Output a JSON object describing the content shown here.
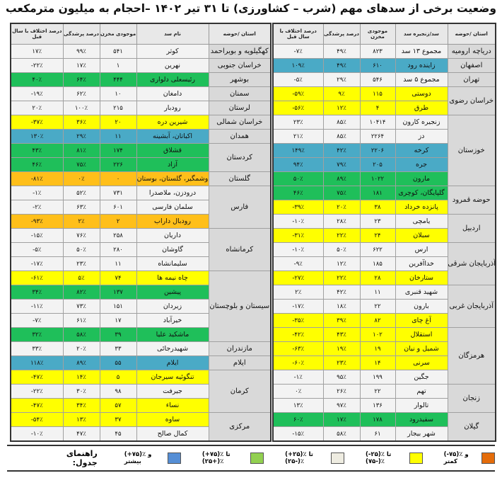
{
  "title": "وضعیت برخی از سدهای مهم (شرب – کشاورزی) تا ۳۱ تیر ۱۴۰۲ –احجام به میلیون مترمکعب",
  "colors": {
    "yellow": "#ffff00",
    "green": "#1fbf5a",
    "blue": "#4aaac6",
    "orange": "#ffbf1a",
    "none": "#f3f3f3"
  },
  "right_table": {
    "headers": {
      "province": "استان /حوضه",
      "dam": "سد/زنجیره سد",
      "storage": "موجودی مخزن",
      "fill": "درصد پرشدگی",
      "diff": "درصد اختلاف با سال قبل"
    },
    "groups": [
      {
        "province": "دریاچه ارومیه",
        "dams": [
          {
            "name": "مجموع ۱۳ سد",
            "storage": "۸۲۳",
            "fill": "۴۹٪",
            "diff": "-۷٪",
            "band": "none"
          }
        ]
      },
      {
        "province": "اصفهان",
        "dams": [
          {
            "name": "زاینده رود",
            "storage": "۶۱۰",
            "fill": "۴۹٪",
            "diff": "۱۰۹٪",
            "band": "blue"
          }
        ]
      },
      {
        "province": "تهران",
        "dams": [
          {
            "name": "مجموع ۵ سد",
            "storage": "۵۴۶",
            "fill": "۲۹٪",
            "diff": "-۵٪",
            "band": "none"
          }
        ]
      },
      {
        "province": "خراسان رضوی",
        "dams": [
          {
            "name": "دوستی",
            "storage": "۱۱۵",
            "fill": "۹٪",
            "diff": "-۵۹٪",
            "band": "yellow"
          },
          {
            "name": "طرق",
            "storage": "۴",
            "fill": "۱۲٪",
            "diff": "-۵۶٪",
            "band": "yellow"
          }
        ]
      },
      {
        "province": "خوزستان",
        "dams": [
          {
            "name": "زنجیره کارون",
            "storage": "۱۰۴۱۴",
            "fill": "۸۵٪",
            "diff": "۲۳٪",
            "band": "none"
          },
          {
            "name": "دز",
            "storage": "۲۲۶۴",
            "fill": "۸۵٪",
            "diff": "۲۱٪",
            "band": "none"
          },
          {
            "name": "کرخه",
            "storage": "۲۲۰۶",
            "fill": "۴۲٪",
            "diff": "۱۴۹٪",
            "band": "blue"
          },
          {
            "name": "جره",
            "storage": "۲۰۵",
            "fill": "۷۹٪",
            "diff": "۹۴٪",
            "band": "blue"
          },
          {
            "name": "مارون",
            "storage": "۱۰۲۲",
            "fill": "۸۹٪",
            "diff": "۵۰٪",
            "band": "green"
          }
        ]
      },
      {
        "province": "حوضه قمرود",
        "dams": [
          {
            "name": "گلپایگان، کوچری",
            "storage": "۱۸۱",
            "fill": "۷۵٪",
            "diff": "۴۶٪",
            "band": "green"
          },
          {
            "name": "پانزده خرداد",
            "storage": "۳۸",
            "fill": "۲۰٪",
            "diff": "-۳۹٪",
            "band": "yellow"
          }
        ]
      },
      {
        "province": "اردبیل",
        "dams": [
          {
            "name": "یامچی",
            "storage": "۲۳",
            "fill": "۲۸٪",
            "diff": "-۱۰٪",
            "band": "none"
          },
          {
            "name": "سبلان",
            "storage": "۲۴",
            "fill": "۲۲٪",
            "diff": "-۳۱٪",
            "band": "yellow"
          }
        ]
      },
      {
        "province": "آذربایجان شرقی",
        "dams": [
          {
            "name": "ارس",
            "storage": "۶۲۲",
            "fill": "۵۰٪",
            "diff": "-۱۰٪",
            "band": "none"
          },
          {
            "name": "خداآفرین",
            "storage": "۱۸۵",
            "fill": "۱۲٪",
            "diff": "-۹٪",
            "band": "none"
          },
          {
            "name": "ستارخان",
            "storage": "۲۸",
            "fill": "۲۲٪",
            "diff": "-۲۷٪",
            "band": "yellow"
          }
        ]
      },
      {
        "province": "آذربایجان غربی",
        "dams": [
          {
            "name": "شهید قنبری",
            "storage": "۱۱",
            "fill": "۴۲٪",
            "diff": "۲٪",
            "band": "none"
          },
          {
            "name": "بارون",
            "storage": "۲۲",
            "fill": "۱۸٪",
            "diff": "-۱۷٪",
            "band": "none"
          },
          {
            "name": "آغ چای",
            "storage": "۸۲",
            "fill": "۳۹٪",
            "diff": "-۳۵٪",
            "band": "yellow"
          }
        ]
      },
      {
        "province": "هرمزگان",
        "dams": [
          {
            "name": "استقلال",
            "storage": "۱۰۲",
            "fill": "۴۳٪",
            "diff": "-۴۲٪",
            "band": "yellow"
          },
          {
            "name": "شمیل و نیان",
            "storage": "۱۹",
            "fill": "۱۹٪",
            "diff": "-۶۳٪",
            "band": "yellow"
          },
          {
            "name": "سرنی",
            "storage": "۱۴",
            "fill": "۲۳٪",
            "diff": "-۶۰٪",
            "band": "yellow"
          },
          {
            "name": "جگین",
            "storage": "۱۹۹",
            "fill": "۹۵٪",
            "diff": "-۱٪",
            "band": "none"
          }
        ]
      },
      {
        "province": "زنجان",
        "dams": [
          {
            "name": "تهم",
            "storage": "۲۲",
            "fill": "۲۶٪",
            "diff": "۰٪",
            "band": "none"
          },
          {
            "name": "تالوار",
            "storage": "۱۳۶",
            "fill": "۹۷٪",
            "diff": "۱۳٪",
            "band": "none"
          }
        ]
      },
      {
        "province": "گیلان",
        "dams": [
          {
            "name": "سفیدرود",
            "storage": "۱۷۸",
            "fill": "۱۷٪",
            "diff": "۶۰٪",
            "band": "green"
          },
          {
            "name": "شهر بیجار",
            "storage": "۶۱",
            "fill": "۵۸٪",
            "diff": "-۱۵٪",
            "band": "none"
          }
        ]
      }
    ]
  },
  "left_table": {
    "headers": {
      "province": "استان /حوضه",
      "dam": "نام سد",
      "storage": "موجودی مخزن",
      "fill": "درصد پرشدگی",
      "diff": "درصد اختلاف با سال قبل"
    },
    "groups": [
      {
        "province": "کهگیلویه و بویراحمد",
        "dams": [
          {
            "name": "کوثر",
            "storage": "۵۴۱",
            "fill": "۹۹٪",
            "diff": "۱۷٪",
            "band": "none"
          }
        ]
      },
      {
        "province": "خراسان جنوبی",
        "dams": [
          {
            "name": "نهرین",
            "storage": "۱",
            "fill": "۱۷٪",
            "diff": "-۲۲٪",
            "band": "none"
          }
        ]
      },
      {
        "province": "بوشهر",
        "dams": [
          {
            "name": "رئیسعلی دلواری",
            "storage": "۴۴۴",
            "fill": "۶۴٪",
            "diff": "۴۰٪",
            "band": "green"
          }
        ]
      },
      {
        "province": "سمنان",
        "dams": [
          {
            "name": "دامغان",
            "storage": "۱۰",
            "fill": "۶۲٪",
            "diff": "-۱۹٪",
            "band": "none"
          }
        ]
      },
      {
        "province": "لرستان",
        "dams": [
          {
            "name": "رودبار",
            "storage": "۲۱۵",
            "fill": "۱۰۰٪",
            "diff": "۲۰٪",
            "band": "none"
          }
        ]
      },
      {
        "province": "خراسان شمالی",
        "dams": [
          {
            "name": "شیرین دره",
            "storage": "۲۰",
            "fill": "۳۶٪",
            "diff": "-۳۷٪",
            "band": "yellow"
          }
        ]
      },
      {
        "province": "همدان",
        "dams": [
          {
            "name": "اکباتان، آبشینه",
            "storage": "۱۱",
            "fill": "۲۹٪",
            "diff": "۱۳۰٪",
            "band": "blue"
          }
        ]
      },
      {
        "province": "کردستان",
        "dams": [
          {
            "name": "قشلاق",
            "storage": "۱۷۴",
            "fill": "۸۱٪",
            "diff": "۴۳٪",
            "band": "green"
          },
          {
            "name": "آزاد",
            "storage": "۲۲۶",
            "fill": "۷۵٪",
            "diff": "۴۶٪",
            "band": "green"
          }
        ]
      },
      {
        "province": "گلستان",
        "dams": [
          {
            "name": "وشمگیر، گلستان، بوستان",
            "storage": "۰",
            "fill": "۰٪",
            "diff": "-۸۱٪",
            "band": "orange"
          }
        ]
      },
      {
        "province": "فارس",
        "dams": [
          {
            "name": "درودزن، ملاصدرا",
            "storage": "۷۳۱",
            "fill": "۵۲٪",
            "diff": "-۱٪",
            "band": "none"
          },
          {
            "name": "سلمان فارسی",
            "storage": "۶۰۱",
            "fill": "۶۳٪",
            "diff": "-۲٪",
            "band": "none"
          },
          {
            "name": "رودبال داراب",
            "storage": "۲",
            "fill": "۲٪",
            "diff": "-۹۳٪",
            "band": "orange"
          }
        ]
      },
      {
        "province": "کرمانشاه",
        "dams": [
          {
            "name": "داریان",
            "storage": "۲۵۸",
            "fill": "۷۶٪",
            "diff": "-۱۵٪",
            "band": "none"
          },
          {
            "name": "گاوشان",
            "storage": "۲۸۰",
            "fill": "۵۰٪",
            "diff": "-۵٪",
            "band": "none"
          },
          {
            "name": "سلیمانشاه",
            "storage": "۱۱",
            "fill": "۲۳٪",
            "diff": "-۱۷٪",
            "band": "none"
          }
        ]
      },
      {
        "province": "سیستان و بلوچستان",
        "dams": [
          {
            "name": "چاه نیمه ها",
            "storage": "۷۴",
            "fill": "۵٪",
            "diff": "-۶۱٪",
            "band": "yellow"
          },
          {
            "name": "پیشین",
            "storage": "۱۳۷",
            "fill": "۸۲٪",
            "diff": "۳۴٪",
            "band": "green"
          },
          {
            "name": "زیردان",
            "storage": "۱۵۱",
            "fill": "۷۳٪",
            "diff": "-۱۱٪",
            "band": "none"
          },
          {
            "name": "خیرآباد",
            "storage": "۱۷",
            "fill": "۶۱٪",
            "diff": "-۷٪",
            "band": "none"
          },
          {
            "name": "ماشکید علیا",
            "storage": "۳۹",
            "fill": "۵۸٪",
            "diff": "۳۲٪",
            "band": "green"
          }
        ]
      },
      {
        "province": "مازندران",
        "dams": [
          {
            "name": "شهیدرجائی",
            "storage": "۳۳",
            "fill": "۲۰٪",
            "diff": "۳۳٪",
            "band": "none"
          }
        ]
      },
      {
        "province": "ایلام",
        "dams": [
          {
            "name": "ایلام",
            "storage": "۵۵",
            "fill": "۸۹٪",
            "diff": "۱۱۸٪",
            "band": "blue"
          }
        ]
      },
      {
        "province": "کرمان",
        "dams": [
          {
            "name": "تنگوئیه سیرجان",
            "storage": "۵",
            "fill": "۱۴٪",
            "diff": "-۴۷٪",
            "band": "yellow"
          },
          {
            "name": "جیرفت",
            "storage": "۹۸",
            "fill": "۳۰٪",
            "diff": "-۲۲٪",
            "band": "none"
          },
          {
            "name": "نساء",
            "storage": "۵۷",
            "fill": "۳۴٪",
            "diff": "-۴۷٪",
            "band": "yellow"
          }
        ]
      },
      {
        "province": "مرکزی",
        "dams": [
          {
            "name": "ساوه",
            "storage": "۳۷",
            "fill": "۱۳٪",
            "diff": "-۵۴٪",
            "band": "yellow"
          },
          {
            "name": "کمال صالح",
            "storage": "۴۵",
            "fill": "۴۷٪",
            "diff": "-۱۰٪",
            "band": "none"
          }
        ]
      }
    ]
  },
  "legend": {
    "title": "راهنمای جدول:",
    "items": [
      {
        "label": "(+۷۵)٪ و بیشتر",
        "color": "#558ed5"
      },
      {
        "label": "(+۷۵)٪ تا (+۲۵)٪",
        "color": "#92d050"
      },
      {
        "label": "(+۲۵)٪ تا (-۲۵)٪",
        "color": "#eeece1"
      },
      {
        "label": "(-۲۵)٪ تا (-۷۵)٪",
        "color": "#ffff00"
      },
      {
        "label": "(-۷۵)٪ و کمتر",
        "color": "#e46c0a"
      }
    ]
  }
}
